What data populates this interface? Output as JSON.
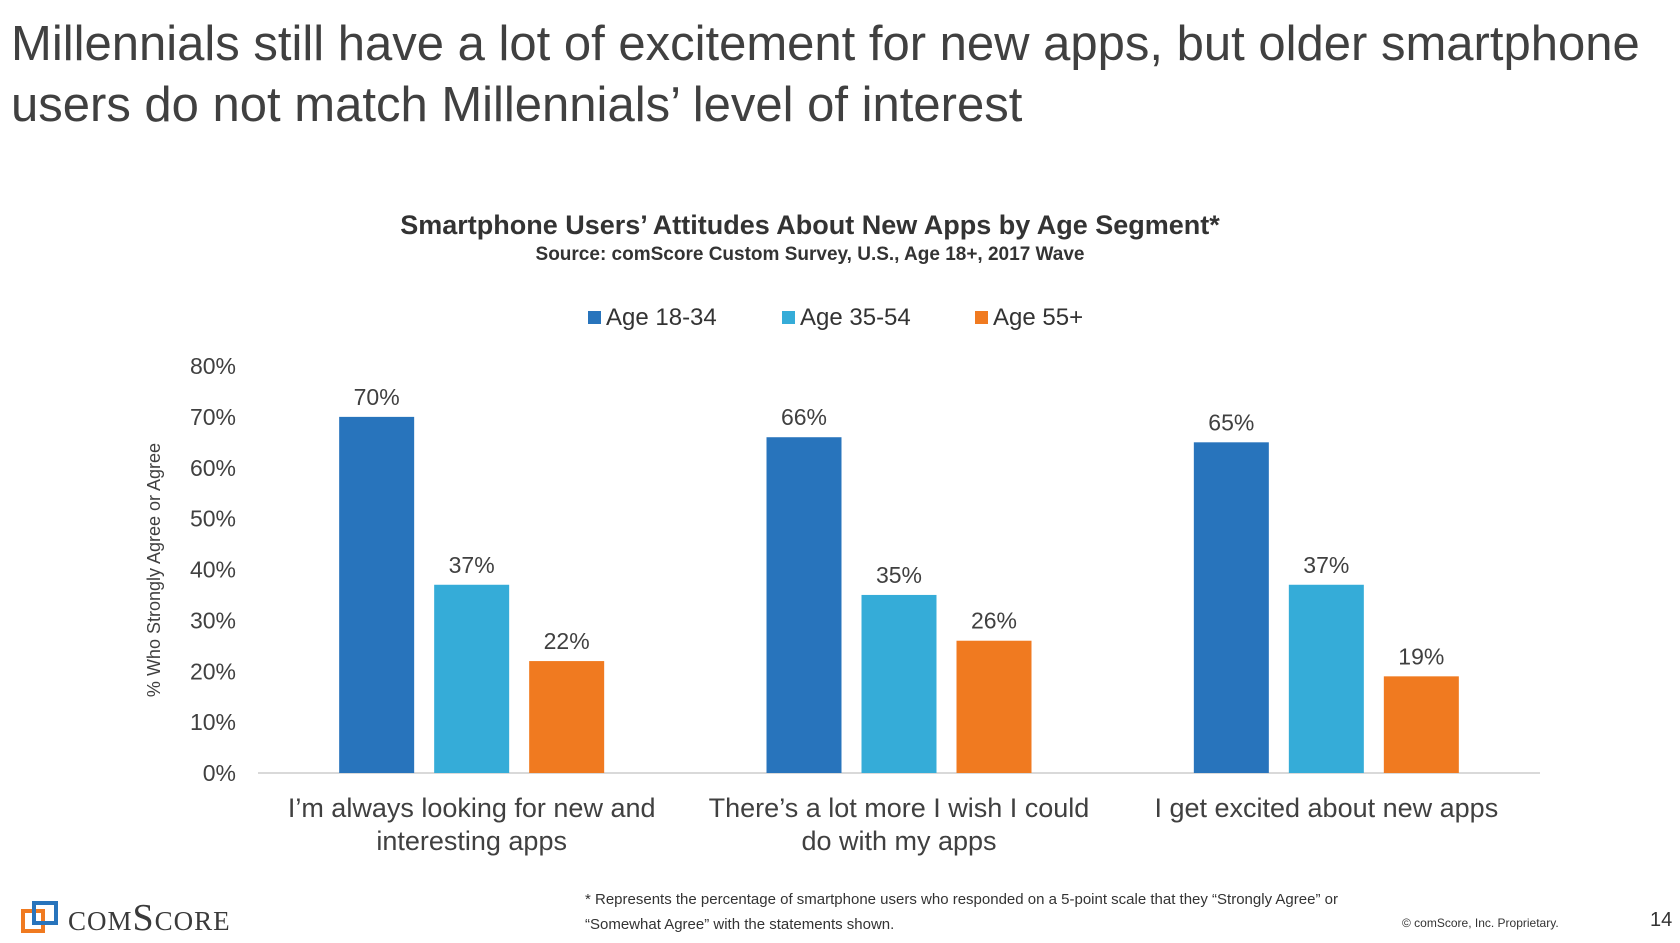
{
  "slide": {
    "headline": "Millennials still have a lot of excitement for new apps, but older smartphone users do not match Millennials’ level of interest",
    "footnote": "* Represents the percentage of smartphone users who responded on a 5-point scale that they “Strongly Agree” or “Somewhat Agree” with the statements shown.",
    "copyright": "© comScore, Inc. Proprietary.",
    "page_number": "14",
    "logo_text": "comScore"
  },
  "chart_data": {
    "type": "bar",
    "title": "Smartphone Users’ Attitudes About New Apps by Age Segment*",
    "subtitle": "Source: comScore Custom Survey, U.S., Age 18+, 2017 Wave",
    "ylabel": "% Who Strongly Agree or Agree",
    "xlabel": "",
    "ylim": [
      0,
      80
    ],
    "yticks": [
      "0%",
      "10%",
      "20%",
      "30%",
      "40%",
      "50%",
      "60%",
      "70%",
      "80%"
    ],
    "grid": false,
    "legend": "top-center",
    "categories": [
      "I’m always looking for new and interesting apps",
      "There’s a lot more I wish I could do with my apps",
      "I get excited about new apps"
    ],
    "category_lines": [
      [
        "I’m always looking for new and",
        "interesting apps"
      ],
      [
        "There’s a lot more I wish I could",
        "do with my apps"
      ],
      [
        "I get excited about new apps"
      ]
    ],
    "series": [
      {
        "name": "Age 18-34",
        "color": "#2874bc",
        "values": [
          70,
          66,
          65
        ],
        "labels": [
          "70%",
          "66%",
          "65%"
        ]
      },
      {
        "name": "Age 35-54",
        "color": "#35acd8",
        "values": [
          37,
          35,
          37
        ],
        "labels": [
          "37%",
          "35%",
          "37%"
        ]
      },
      {
        "name": "Age 55+",
        "color": "#f07a20",
        "values": [
          22,
          26,
          19
        ],
        "labels": [
          "22%",
          "26%",
          "19%"
        ]
      }
    ]
  }
}
